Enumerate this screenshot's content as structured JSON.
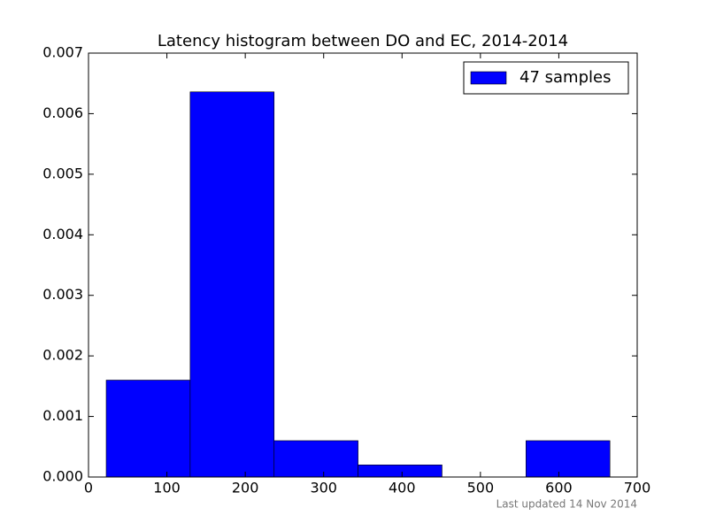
{
  "chart_data": {
    "type": "histogram",
    "title": "Latency histogram between DO and EC, 2014-2014",
    "bins": [
      22.6,
      129.7,
      236.8,
      343.9,
      451.0,
      558.1,
      665.2
    ],
    "series": [
      {
        "name": "47 samples",
        "color": "#0000ff",
        "values": [
          0.0016,
          0.00636,
          0.0006,
          0.0002,
          0,
          0.0006
        ]
      }
    ],
    "xlim": [
      0,
      700
    ],
    "xticks": [
      0,
      100,
      200,
      300,
      400,
      500,
      600,
      700
    ],
    "ylim": [
      0,
      0.007
    ],
    "yticks": [
      {
        "value": 0,
        "label": "0.000"
      },
      {
        "value": 0.001,
        "label": "0.001"
      },
      {
        "value": 0.002,
        "label": "0.002"
      },
      {
        "value": 0.003,
        "label": "0.003"
      },
      {
        "value": 0.004,
        "label": "0.004"
      },
      {
        "value": 0.005,
        "label": "0.005"
      },
      {
        "value": 0.006,
        "label": "0.006"
      },
      {
        "value": 0.007,
        "label": "0.007"
      }
    ],
    "legend": "upper right",
    "footer": "Last updated 14 Nov 2014"
  }
}
